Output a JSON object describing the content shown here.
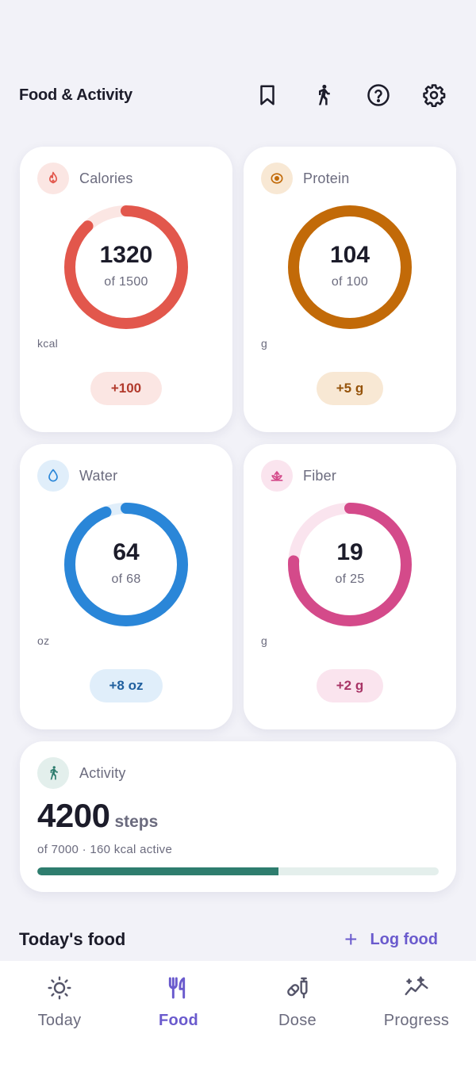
{
  "header": {
    "title": "Food & Activity",
    "icons": [
      "bookmark-icon",
      "walking-icon",
      "help-icon",
      "gear-icon"
    ]
  },
  "metrics": [
    {
      "label": "Calories",
      "icon": "flame-icon",
      "value": "1320",
      "target_text": "of 1500",
      "value_num": 1320,
      "target_num": 1500,
      "unit": "kcal",
      "delta": "+100",
      "color": "#e2574c",
      "track": "#fbe6e3",
      "pill_bg": "#fbe6e3",
      "pill_fg": "#b23a2c",
      "icon_bg": "#fbe6e3"
    },
    {
      "label": "Protein",
      "icon": "egg-icon",
      "value": "104",
      "target_text": "of 100",
      "value_num": 104,
      "target_num": 100,
      "unit": "g",
      "delta": "+5 g",
      "color": "#c26a08",
      "track": "#f8e8d4",
      "pill_bg": "#f8e8d4",
      "pill_fg": "#95530a",
      "icon_bg": "#f8e8d4"
    },
    {
      "label": "Water",
      "icon": "drop-icon",
      "value": "64",
      "target_text": "of 68",
      "value_num": 64,
      "target_num": 68,
      "unit": "oz",
      "delta": "+8 oz",
      "color": "#2a86d8",
      "track": "#e0eefa",
      "pill_bg": "#e0eefa",
      "pill_fg": "#1f5f9e",
      "icon_bg": "#e0eefa"
    },
    {
      "label": "Fiber",
      "icon": "sprout-icon",
      "value": "19",
      "target_text": "of 25",
      "value_num": 19,
      "target_num": 25,
      "unit": "g",
      "delta": "+2 g",
      "color": "#d44a8a",
      "track": "#fae4ee",
      "pill_bg": "#fae4ee",
      "pill_fg": "#a83466",
      "icon_bg": "#fae4ee"
    }
  ],
  "activity": {
    "label": "Activity",
    "icon": "walking-icon",
    "steps": "4200",
    "steps_unit": "steps",
    "subtitle": "of 7000 · 160 kcal active",
    "progress": 0.6,
    "color": "#2e7d6e",
    "icon_bg": "#e3efec"
  },
  "food": {
    "title": "Today's food",
    "log_label": "Log food",
    "log_icon": "plus-icon"
  },
  "nav": [
    {
      "label": "Today",
      "icon": "sun-icon",
      "active": false
    },
    {
      "label": "Food",
      "icon": "fork-knife-icon",
      "active": true
    },
    {
      "label": "Dose",
      "icon": "syringe-pill-icon",
      "active": false
    },
    {
      "label": "Progress",
      "icon": "sparkle-chart-icon",
      "active": false
    }
  ],
  "colors": {
    "accent": "#6a5acd",
    "background": "#f2f2f8",
    "muted": "#6b6b7e"
  }
}
